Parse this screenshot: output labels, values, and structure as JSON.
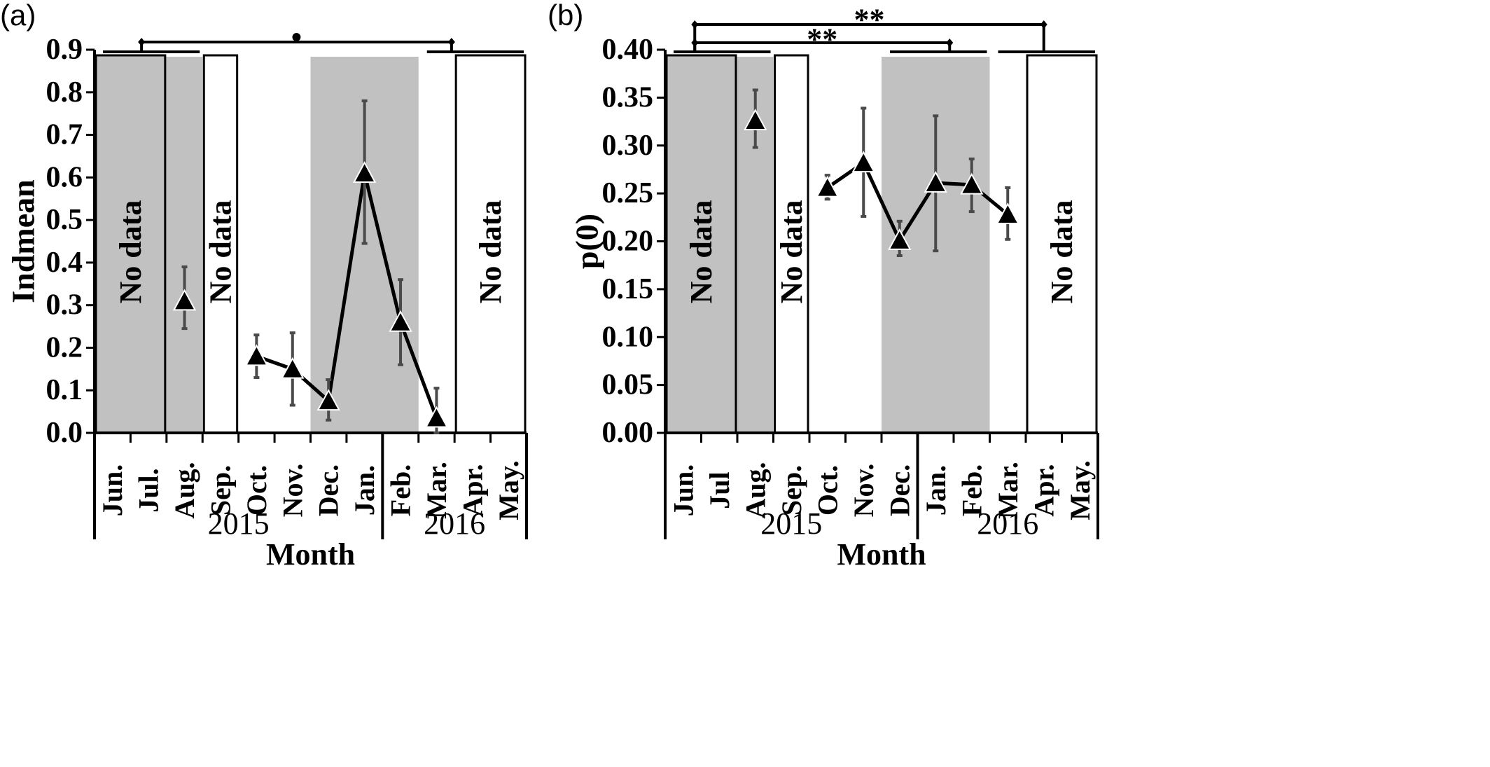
{
  "chart_data": [
    {
      "panel_label": "(a)",
      "type": "line",
      "ylabel": "Indmean",
      "xlabel": "Month",
      "ylim": [
        0,
        0.9
      ],
      "yticks": [
        "0.0",
        "0.1",
        "0.2",
        "0.3",
        "0.4",
        "0.5",
        "0.6",
        "0.7",
        "0.8",
        "0.9"
      ],
      "categories": [
        "Jun.",
        "Jul.",
        "Aug.",
        "Sep.",
        "Oct.",
        "Nov.",
        "Dec.",
        "Jan.",
        "Feb.",
        "Mar.",
        "Apr.",
        "May."
      ],
      "years": [
        "2015",
        "2016"
      ],
      "no_data_label": "No data",
      "no_data_months": [
        [
          "Jun.",
          "Jul."
        ],
        [
          "Sep."
        ],
        [
          "Apr.",
          "May."
        ]
      ],
      "shaded_months": [
        [
          "Jun.",
          "Aug."
        ],
        [
          "Dec.",
          "Feb."
        ]
      ],
      "points": [
        {
          "x": "Aug.",
          "y": 0.31,
          "lo": 0.245,
          "hi": 0.39
        },
        {
          "x": "Oct.",
          "y": 0.18,
          "lo": 0.13,
          "hi": 0.23
        },
        {
          "x": "Nov.",
          "y": 0.15,
          "lo": 0.065,
          "hi": 0.235
        },
        {
          "x": "Dec.",
          "y": 0.075,
          "lo": 0.03,
          "hi": 0.125
        },
        {
          "x": "Jan.",
          "y": 0.61,
          "lo": 0.445,
          "hi": 0.78
        },
        {
          "x": "Feb.",
          "y": 0.26,
          "lo": 0.16,
          "hi": 0.36
        },
        {
          "x": "Mar.",
          "y": 0.035,
          "lo": 0.0,
          "hi": 0.105
        }
      ],
      "connected": [
        [
          "Oct.",
          "Nov.",
          "Dec.",
          "Jan.",
          "Feb.",
          "Mar."
        ]
      ],
      "significance": [
        {
          "symbol": "•",
          "from": [
            "Jun.",
            "Aug."
          ],
          "to": [
            "Mar.",
            "May."
          ]
        }
      ]
    },
    {
      "panel_label": "(b)",
      "type": "line",
      "ylabel": "p(0)",
      "xlabel": "Month",
      "ylim": [
        0,
        0.4
      ],
      "yticks": [
        "0.00",
        "0.05",
        "0.10",
        "0.15",
        "0.20",
        "0.25",
        "0.30",
        "0.35",
        "0.40"
      ],
      "categories": [
        "Jun.",
        "Jul",
        "Aug.",
        "Sep.",
        "Oct.",
        "Nov.",
        "Dec.",
        "Jan.",
        "Feb.",
        "Mar.",
        "Apr.",
        "May."
      ],
      "years": [
        "2015",
        "2016"
      ],
      "no_data_label": "No data",
      "no_data_months": [
        [
          "Jun.",
          "Jul"
        ],
        [
          "Sep."
        ],
        [
          "Apr.",
          "May."
        ]
      ],
      "shaded_months": [
        [
          "Jun.",
          "Aug."
        ],
        [
          "Dec.",
          "Feb."
        ]
      ],
      "points": [
        {
          "x": "Aug.",
          "y": 0.326,
          "lo": 0.298,
          "hi": 0.358
        },
        {
          "x": "Oct.",
          "y": 0.256,
          "lo": 0.244,
          "hi": 0.269
        },
        {
          "x": "Nov.",
          "y": 0.282,
          "lo": 0.226,
          "hi": 0.339
        },
        {
          "x": "Dec.",
          "y": 0.201,
          "lo": 0.185,
          "hi": 0.221
        },
        {
          "x": "Jan.",
          "y": 0.261,
          "lo": 0.19,
          "hi": 0.331
        },
        {
          "x": "Feb.",
          "y": 0.259,
          "lo": 0.231,
          "hi": 0.286
        },
        {
          "x": "Mar.",
          "y": 0.228,
          "lo": 0.202,
          "hi": 0.256
        }
      ],
      "connected": [
        [
          "Oct.",
          "Nov.",
          "Dec.",
          "Jan.",
          "Feb.",
          "Mar."
        ]
      ],
      "significance": [
        {
          "symbol": "**",
          "from": [
            "Jun.",
            "Aug."
          ],
          "to": [
            "Mar.",
            "May."
          ]
        },
        {
          "symbol": "**",
          "from": [
            "Jun.",
            "Aug."
          ],
          "to": [
            "Dec.",
            "Feb."
          ]
        }
      ]
    }
  ],
  "colors": {
    "shade": "#c1c1c1",
    "line": "#000000",
    "errorbar": "#4a4a4a",
    "background": "#ffffff"
  }
}
